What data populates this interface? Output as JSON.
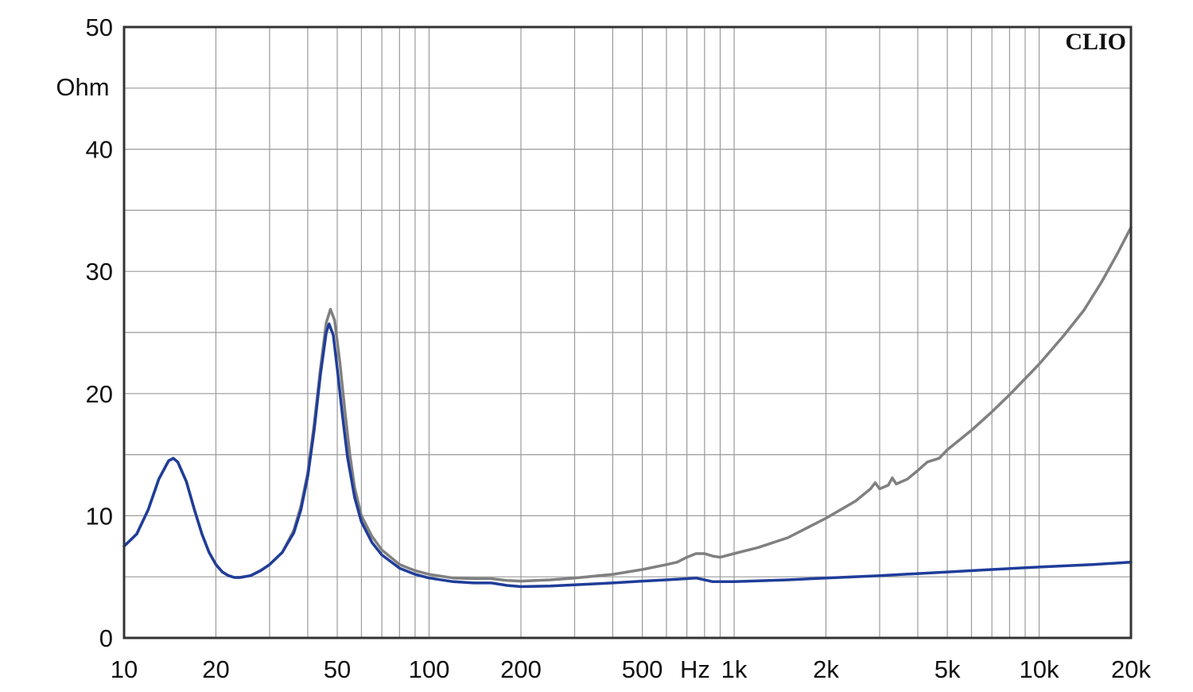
{
  "chart_data": {
    "type": "line",
    "title": "",
    "xlabel": "Hz",
    "ylabel": "Ohm",
    "brand": "CLIO",
    "x_scale": "log",
    "xlim": [
      10,
      20000
    ],
    "ylim": [
      0,
      50
    ],
    "grid": true,
    "x_ticks": [
      {
        "value": 10,
        "label": "10"
      },
      {
        "value": 20,
        "label": "20"
      },
      {
        "value": 50,
        "label": "50"
      },
      {
        "value": 100,
        "label": "100"
      },
      {
        "value": 200,
        "label": "200"
      },
      {
        "value": 500,
        "label": "500"
      },
      {
        "value": 1000,
        "label": "1k"
      },
      {
        "value": 2000,
        "label": "2k"
      },
      {
        "value": 5000,
        "label": "5k"
      },
      {
        "value": 10000,
        "label": "10k"
      },
      {
        "value": 20000,
        "label": "20k"
      }
    ],
    "y_ticks": [
      {
        "value": 0,
        "label": "0"
      },
      {
        "value": 10,
        "label": "10"
      },
      {
        "value": 20,
        "label": "20"
      },
      {
        "value": 30,
        "label": "30"
      },
      {
        "value": 40,
        "label": "40"
      },
      {
        "value": 50,
        "label": "50"
      }
    ],
    "colors": {
      "grid": "#9a9a9a",
      "axis": "#333333"
    },
    "series": [
      {
        "color": "#808080",
        "points": [
          [
            10,
            7.5
          ],
          [
            11,
            8.5
          ],
          [
            12,
            10.5
          ],
          [
            13,
            13.0
          ],
          [
            14,
            14.5
          ],
          [
            14.5,
            14.7
          ],
          [
            15,
            14.4
          ],
          [
            16,
            12.8
          ],
          [
            17,
            10.5
          ],
          [
            18,
            8.5
          ],
          [
            19,
            7.0
          ],
          [
            20,
            6.0
          ],
          [
            21,
            5.4
          ],
          [
            22,
            5.1
          ],
          [
            23,
            4.95
          ],
          [
            24,
            4.95
          ],
          [
            26,
            5.1
          ],
          [
            28,
            5.5
          ],
          [
            30,
            6.0
          ],
          [
            33,
            7.0
          ],
          [
            36,
            8.8
          ],
          [
            38,
            10.8
          ],
          [
            40,
            13.5
          ],
          [
            42,
            17.5
          ],
          [
            44,
            22.0
          ],
          [
            46,
            25.8
          ],
          [
            47.5,
            26.9
          ],
          [
            49,
            26.0
          ],
          [
            51,
            22.5
          ],
          [
            53,
            18.5
          ],
          [
            55,
            15.0
          ],
          [
            57,
            12.3
          ],
          [
            60,
            10.0
          ],
          [
            65,
            8.3
          ],
          [
            70,
            7.2
          ],
          [
            80,
            6.0
          ],
          [
            90,
            5.5
          ],
          [
            100,
            5.2
          ],
          [
            120,
            4.9
          ],
          [
            140,
            4.85
          ],
          [
            160,
            4.85
          ],
          [
            180,
            4.7
          ],
          [
            200,
            4.65
          ],
          [
            250,
            4.75
          ],
          [
            300,
            4.9
          ],
          [
            400,
            5.2
          ],
          [
            500,
            5.6
          ],
          [
            600,
            6.0
          ],
          [
            650,
            6.2
          ],
          [
            700,
            6.6
          ],
          [
            750,
            6.9
          ],
          [
            800,
            6.9
          ],
          [
            850,
            6.7
          ],
          [
            900,
            6.6
          ],
          [
            1000,
            6.9
          ],
          [
            1200,
            7.4
          ],
          [
            1500,
            8.2
          ],
          [
            2000,
            9.8
          ],
          [
            2500,
            11.2
          ],
          [
            2800,
            12.2
          ],
          [
            2900,
            12.7
          ],
          [
            3000,
            12.2
          ],
          [
            3200,
            12.5
          ],
          [
            3300,
            13.1
          ],
          [
            3400,
            12.6
          ],
          [
            3700,
            13.0
          ],
          [
            4000,
            13.7
          ],
          [
            4300,
            14.4
          ],
          [
            4700,
            14.7
          ],
          [
            5000,
            15.4
          ],
          [
            6000,
            17.0
          ],
          [
            7000,
            18.5
          ],
          [
            8000,
            19.9
          ],
          [
            10000,
            22.4
          ],
          [
            12000,
            24.7
          ],
          [
            14000,
            26.8
          ],
          [
            16000,
            29.1
          ],
          [
            18000,
            31.4
          ],
          [
            20000,
            33.6
          ]
        ]
      },
      {
        "color": "#1f3d99",
        "points": [
          [
            10,
            7.5
          ],
          [
            11,
            8.5
          ],
          [
            12,
            10.5
          ],
          [
            13,
            13.0
          ],
          [
            14,
            14.5
          ],
          [
            14.5,
            14.7
          ],
          [
            15,
            14.4
          ],
          [
            16,
            12.8
          ],
          [
            17,
            10.5
          ],
          [
            18,
            8.5
          ],
          [
            19,
            7.0
          ],
          [
            20,
            6.0
          ],
          [
            21,
            5.4
          ],
          [
            22,
            5.1
          ],
          [
            23,
            4.95
          ],
          [
            24,
            4.95
          ],
          [
            26,
            5.1
          ],
          [
            28,
            5.5
          ],
          [
            30,
            6.0
          ],
          [
            33,
            7.0
          ],
          [
            36,
            8.6
          ],
          [
            38,
            10.5
          ],
          [
            40,
            13.2
          ],
          [
            42,
            17.0
          ],
          [
            44,
            21.5
          ],
          [
            46,
            25.0
          ],
          [
            47,
            25.7
          ],
          [
            48.5,
            24.8
          ],
          [
            50,
            22.0
          ],
          [
            52,
            18.2
          ],
          [
            54,
            14.8
          ],
          [
            57,
            11.5
          ],
          [
            60,
            9.5
          ],
          [
            65,
            7.8
          ],
          [
            70,
            6.8
          ],
          [
            80,
            5.7
          ],
          [
            90,
            5.2
          ],
          [
            100,
            4.9
          ],
          [
            120,
            4.6
          ],
          [
            140,
            4.5
          ],
          [
            160,
            4.5
          ],
          [
            180,
            4.3
          ],
          [
            200,
            4.2
          ],
          [
            250,
            4.25
          ],
          [
            300,
            4.35
          ],
          [
            400,
            4.5
          ],
          [
            500,
            4.65
          ],
          [
            600,
            4.75
          ],
          [
            700,
            4.85
          ],
          [
            750,
            4.9
          ],
          [
            800,
            4.75
          ],
          [
            850,
            4.6
          ],
          [
            900,
            4.6
          ],
          [
            1000,
            4.6
          ],
          [
            1500,
            4.75
          ],
          [
            2000,
            4.9
          ],
          [
            3000,
            5.1
          ],
          [
            5000,
            5.4
          ],
          [
            7000,
            5.6
          ],
          [
            10000,
            5.8
          ],
          [
            15000,
            6.0
          ],
          [
            20000,
            6.2
          ]
        ]
      }
    ]
  }
}
